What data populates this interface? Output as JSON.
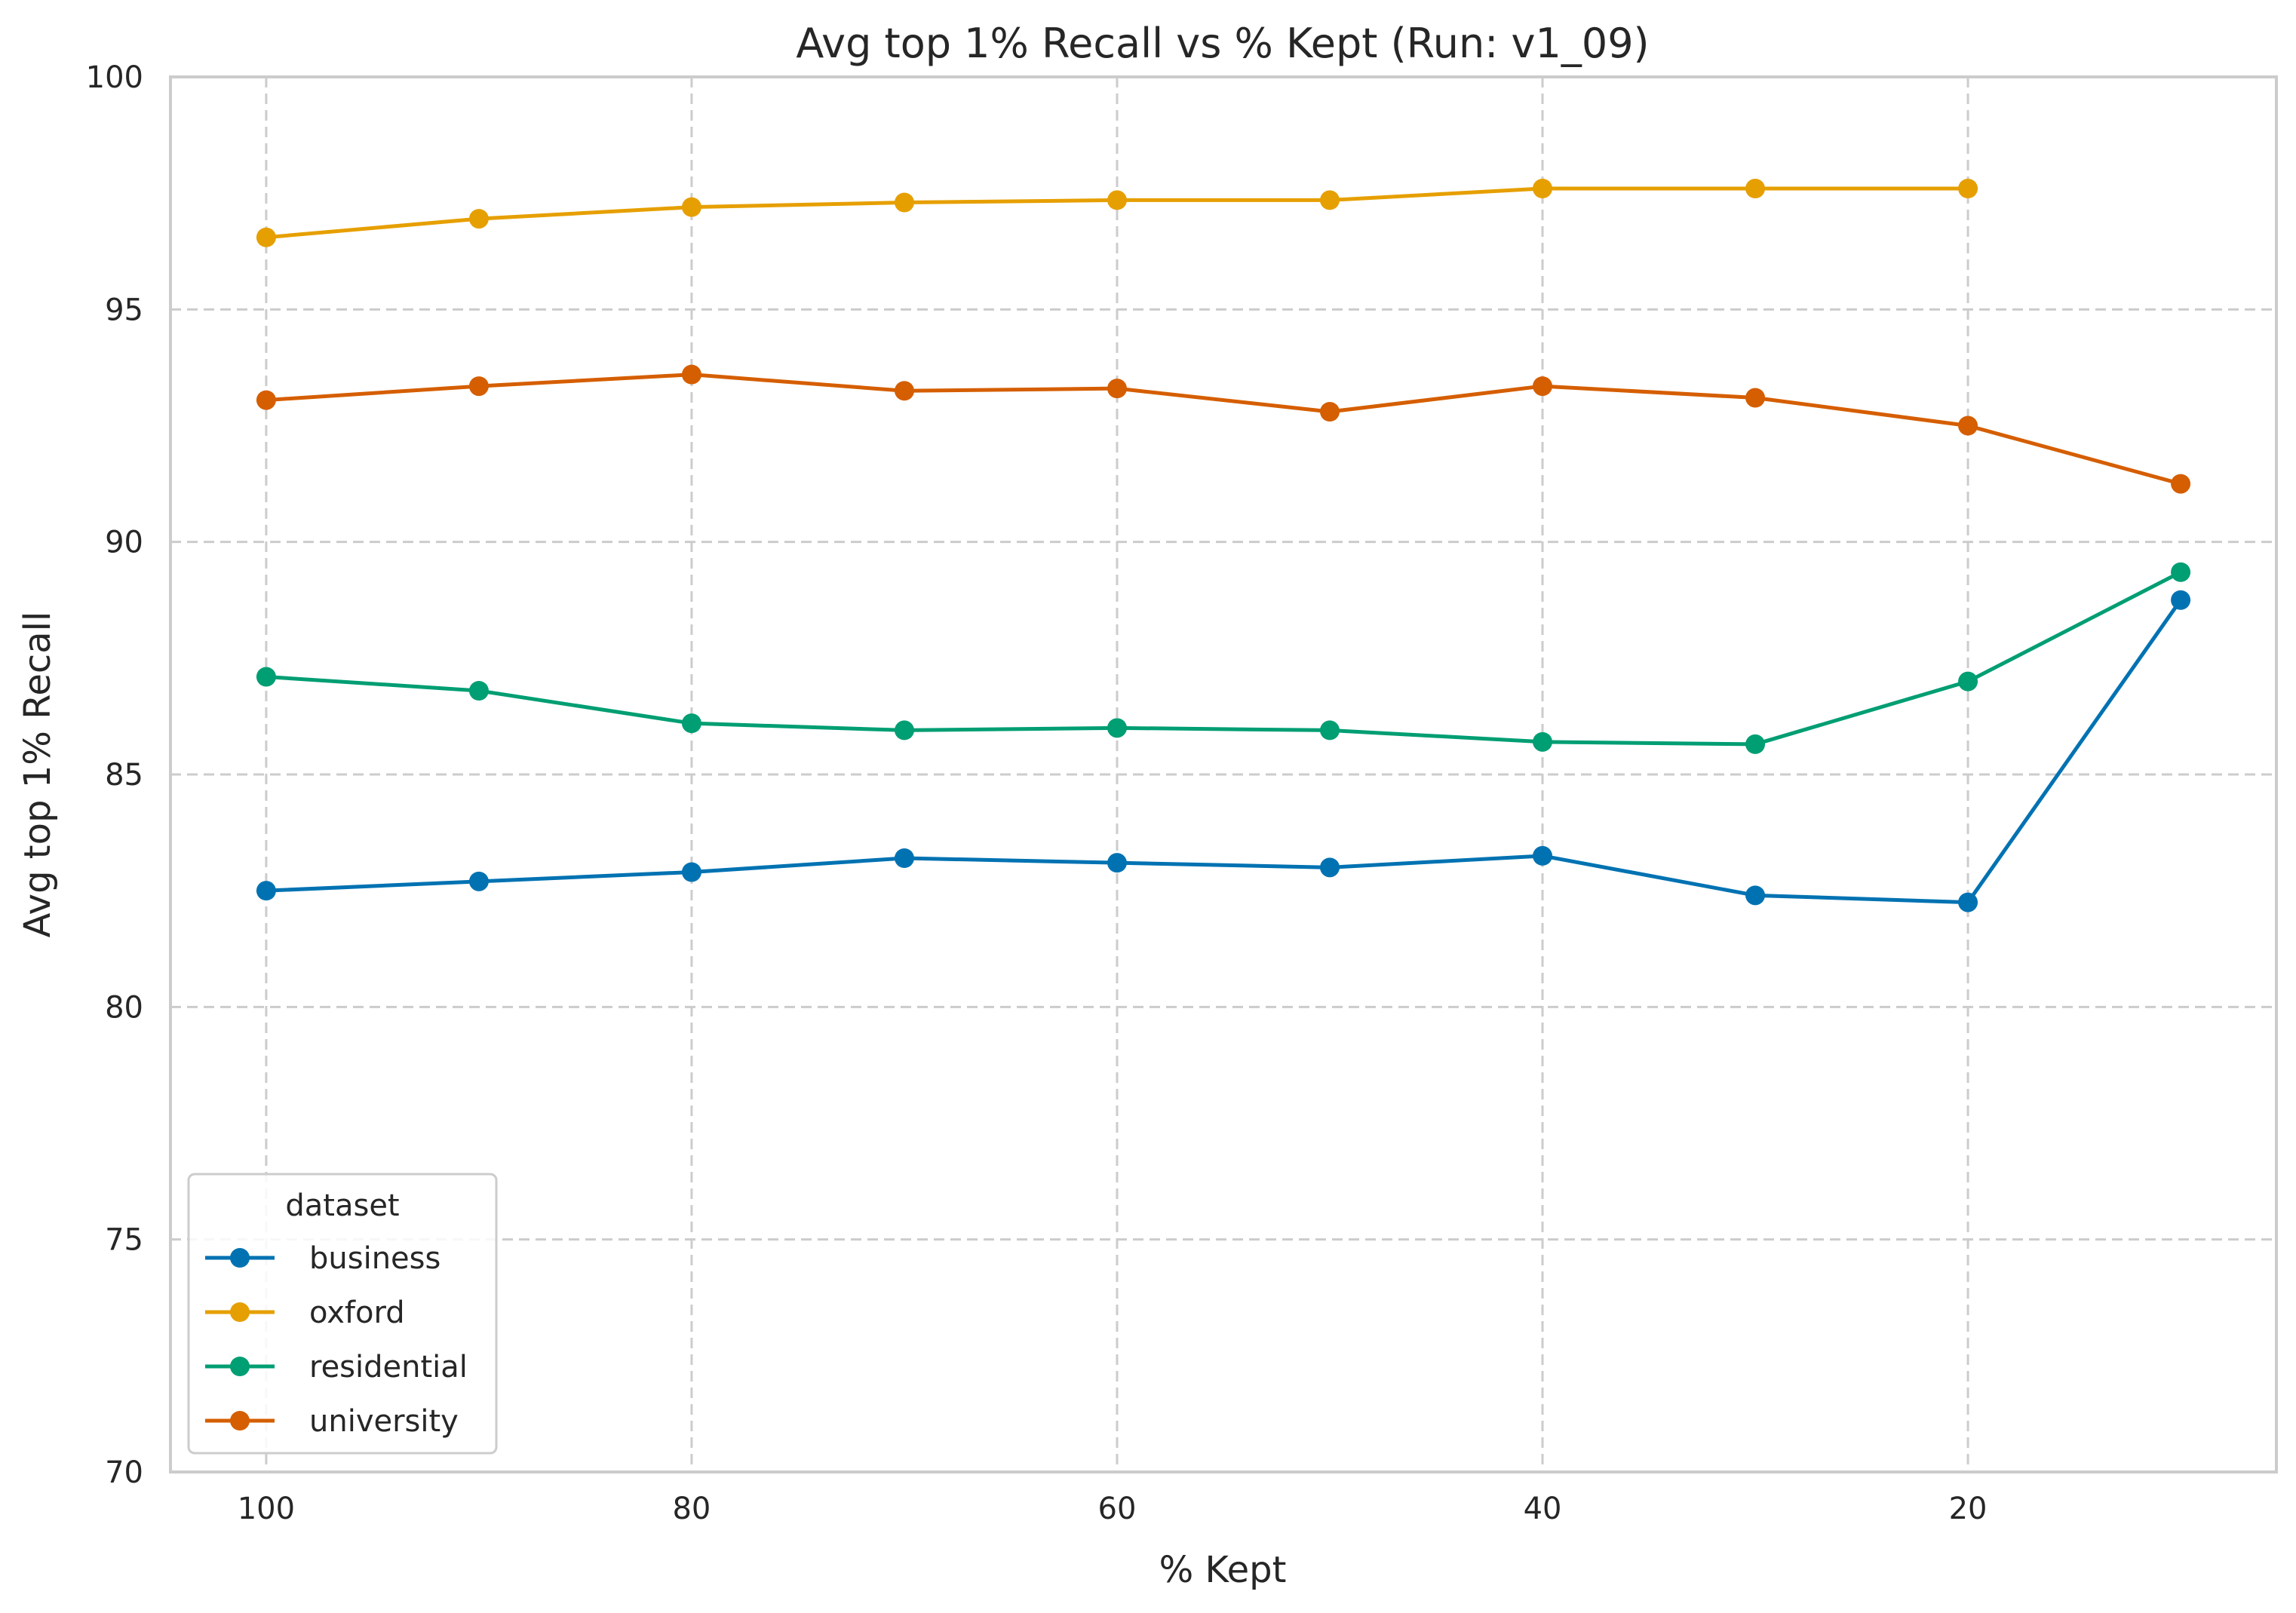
{
  "chart_data": {
    "type": "line",
    "title": "Avg top 1% Recall vs % Kept (Run: v1_09)",
    "xlabel": "% Kept",
    "ylabel": "Avg top 1% Recall",
    "xlim": [
      104.5,
      5.5
    ],
    "ylim": [
      70,
      100
    ],
    "x_reversed": true,
    "xticks": [
      100,
      80,
      60,
      40,
      20
    ],
    "yticks": [
      70,
      75,
      80,
      85,
      90,
      95,
      100
    ],
    "grid": true,
    "legend": {
      "title": "dataset",
      "placement": "lower-left"
    },
    "series": [
      {
        "name": "business",
        "color": "#0072b2",
        "x": [
          100,
          90,
          80,
          70,
          60,
          50,
          40,
          30,
          20,
          10
        ],
        "values": [
          82.5,
          82.7,
          82.9,
          83.2,
          83.1,
          83.0,
          83.25,
          82.4,
          82.25,
          88.75
        ]
      },
      {
        "name": "oxford",
        "color": "#e69f00",
        "x": [
          100,
          90,
          80,
          70,
          60,
          50,
          40,
          30,
          20
        ],
        "values": [
          96.55,
          96.95,
          97.2,
          97.3,
          97.35,
          97.35,
          97.6,
          97.6,
          97.6
        ]
      },
      {
        "name": "residential",
        "color": "#009e73",
        "x": [
          100,
          90,
          80,
          70,
          60,
          50,
          40,
          30,
          20,
          10
        ],
        "values": [
          87.1,
          86.8,
          86.1,
          85.95,
          86.0,
          85.95,
          85.7,
          85.65,
          87.0,
          89.35
        ]
      },
      {
        "name": "university",
        "color": "#d55e00",
        "x": [
          100,
          90,
          80,
          70,
          60,
          50,
          40,
          30,
          20,
          10
        ],
        "values": [
          93.05,
          93.35,
          93.6,
          93.25,
          93.3,
          92.8,
          93.35,
          93.1,
          92.5,
          91.25
        ]
      }
    ]
  }
}
